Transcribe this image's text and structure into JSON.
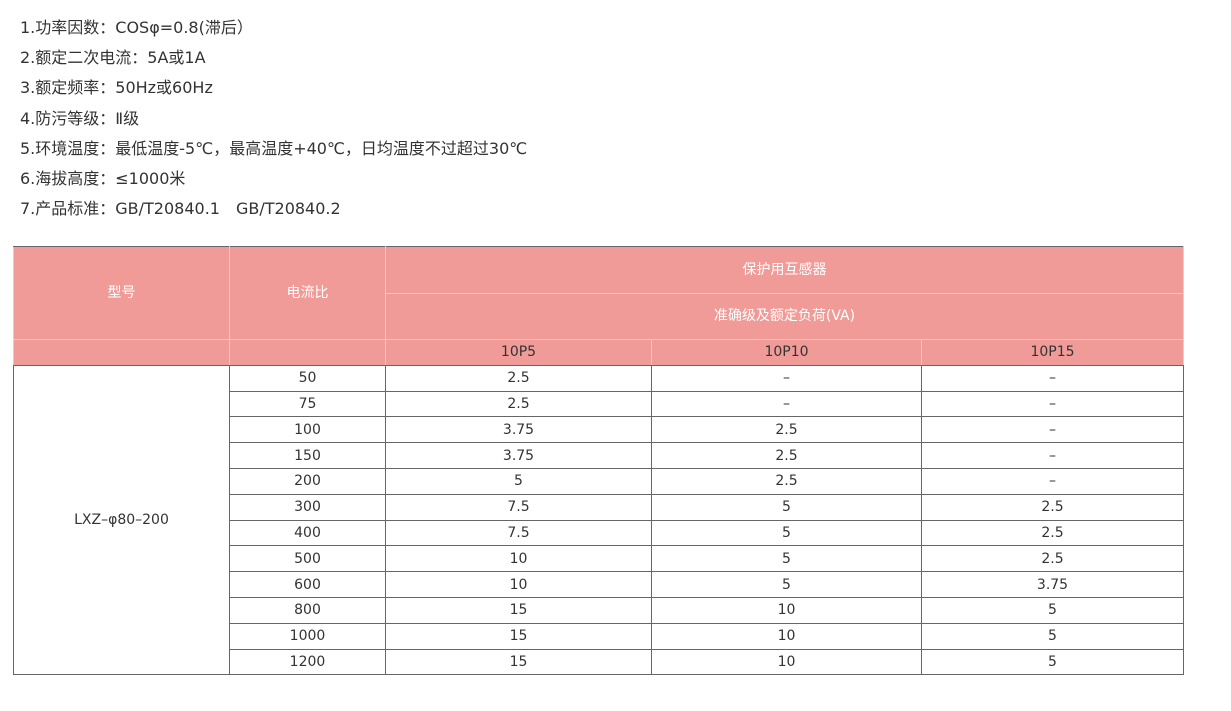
{
  "specs": [
    "1.功率因数：COSφ=0.8(滞后）",
    "2.额定二次电流：5A或1A",
    "3.额定频率：50Hz或60Hz",
    "4.防污等级：Ⅱ级",
    "5.环境温度：最低温度-5℃，最高温度+40℃，日均温度不过超过30℃",
    "6.海拔高度：≤1000米",
    "7.产品标准：GB/T20840.1　GB/T20840.2"
  ],
  "table": {
    "header": {
      "model": "型号",
      "ratio": "电流比",
      "group": "保护用互感器",
      "subgroup": "准确级及额定负荷(VA)",
      "classes": [
        "10P5",
        "10P10",
        "10P15"
      ]
    },
    "model": "LXZ–φ80–200",
    "rows": [
      [
        "50",
        "2.5",
        "–",
        "–"
      ],
      [
        "75",
        "2.5",
        "–",
        "–"
      ],
      [
        "100",
        "3.75",
        "2.5",
        "–"
      ],
      [
        "150",
        "3.75",
        "2.5",
        "–"
      ],
      [
        "200",
        "5",
        "2.5",
        "–"
      ],
      [
        "300",
        "7.5",
        "5",
        "2.5"
      ],
      [
        "400",
        "7.5",
        "5",
        "2.5"
      ],
      [
        "500",
        "10",
        "5",
        "2.5"
      ],
      [
        "600",
        "10",
        "5",
        "3.75"
      ],
      [
        "800",
        "15",
        "10",
        "5"
      ],
      [
        "1000",
        "15",
        "10",
        "5"
      ],
      [
        "1200",
        "15",
        "10",
        "5"
      ]
    ]
  }
}
